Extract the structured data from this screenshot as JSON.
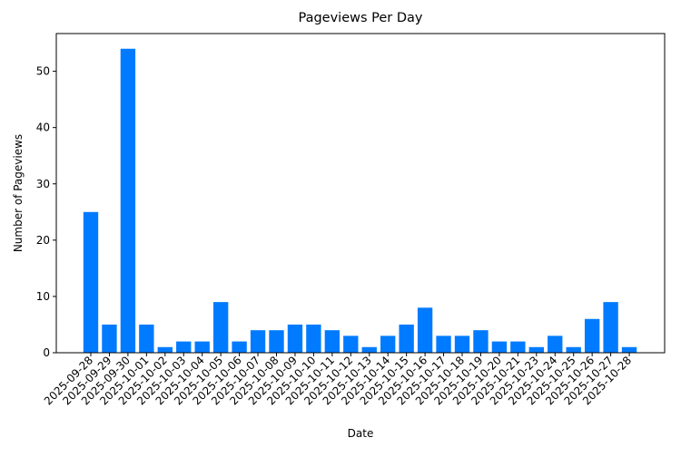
{
  "chart_data": {
    "type": "bar",
    "title": "Pageviews Per Day",
    "x_label": "Date",
    "y_label": "Number of Pageviews",
    "categories": [
      "2025-09-28",
      "2025-09-29",
      "2025-09-30",
      "2025-10-01",
      "2025-10-02",
      "2025-10-03",
      "2025-10-04",
      "2025-10-05",
      "2025-10-06",
      "2025-10-07",
      "2025-10-08",
      "2025-10-09",
      "2025-10-10",
      "2025-10-11",
      "2025-10-12",
      "2025-10-13",
      "2025-10-14",
      "2025-10-15",
      "2025-10-16",
      "2025-10-17",
      "2025-10-18",
      "2025-10-19",
      "2025-10-20",
      "2025-10-21",
      "2025-10-23",
      "2025-10-24",
      "2025-10-25",
      "2025-10-26",
      "2025-10-27",
      "2025-10-28"
    ],
    "values": [
      25,
      5,
      54,
      5,
      1,
      2,
      2,
      9,
      2,
      4,
      4,
      5,
      5,
      4,
      3,
      1,
      3,
      5,
      8,
      3,
      3,
      4,
      2,
      2,
      1,
      3,
      1,
      6,
      9,
      1
    ],
    "color": "#007bff",
    "ylim": [
      0,
      56.7
    ],
    "yticks": [
      0,
      10,
      20,
      30,
      40,
      50
    ],
    "grid": false
  }
}
